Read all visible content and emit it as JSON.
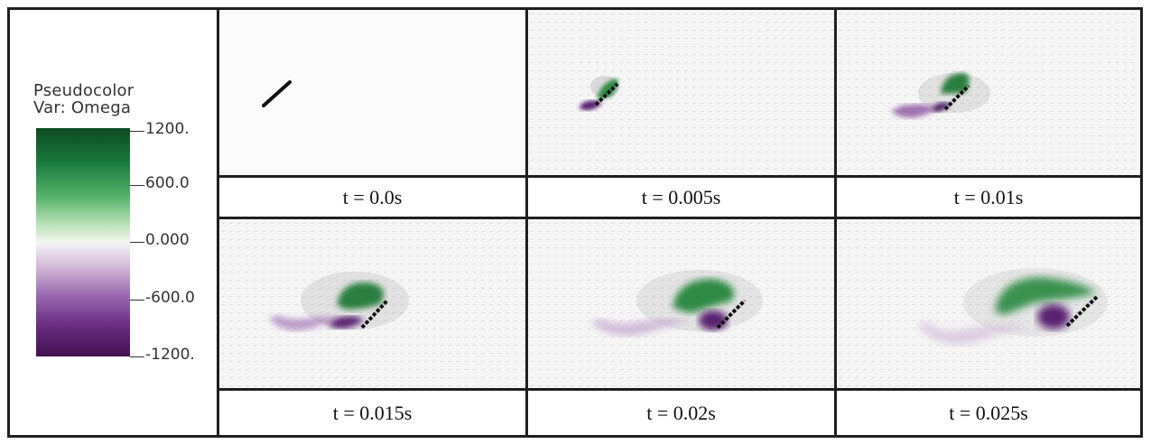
{
  "legend": {
    "title_line1": "Pseudocolor",
    "title_line2": "Var: Omega",
    "ticks": [
      "1200.",
      "600.0",
      "0.000",
      "-600.0",
      "-1200."
    ],
    "colors": {
      "max": "#0c4b23",
      "mid": "#f4f7f2",
      "min": "#42104f"
    }
  },
  "panels": [
    {
      "caption": "t = 0.0s"
    },
    {
      "caption": "t = 0.005s"
    },
    {
      "caption": "t = 0.01s"
    },
    {
      "caption": "t = 0.015s"
    },
    {
      "caption": "t = 0.02s"
    },
    {
      "caption": "t = 0.025s"
    }
  ]
}
